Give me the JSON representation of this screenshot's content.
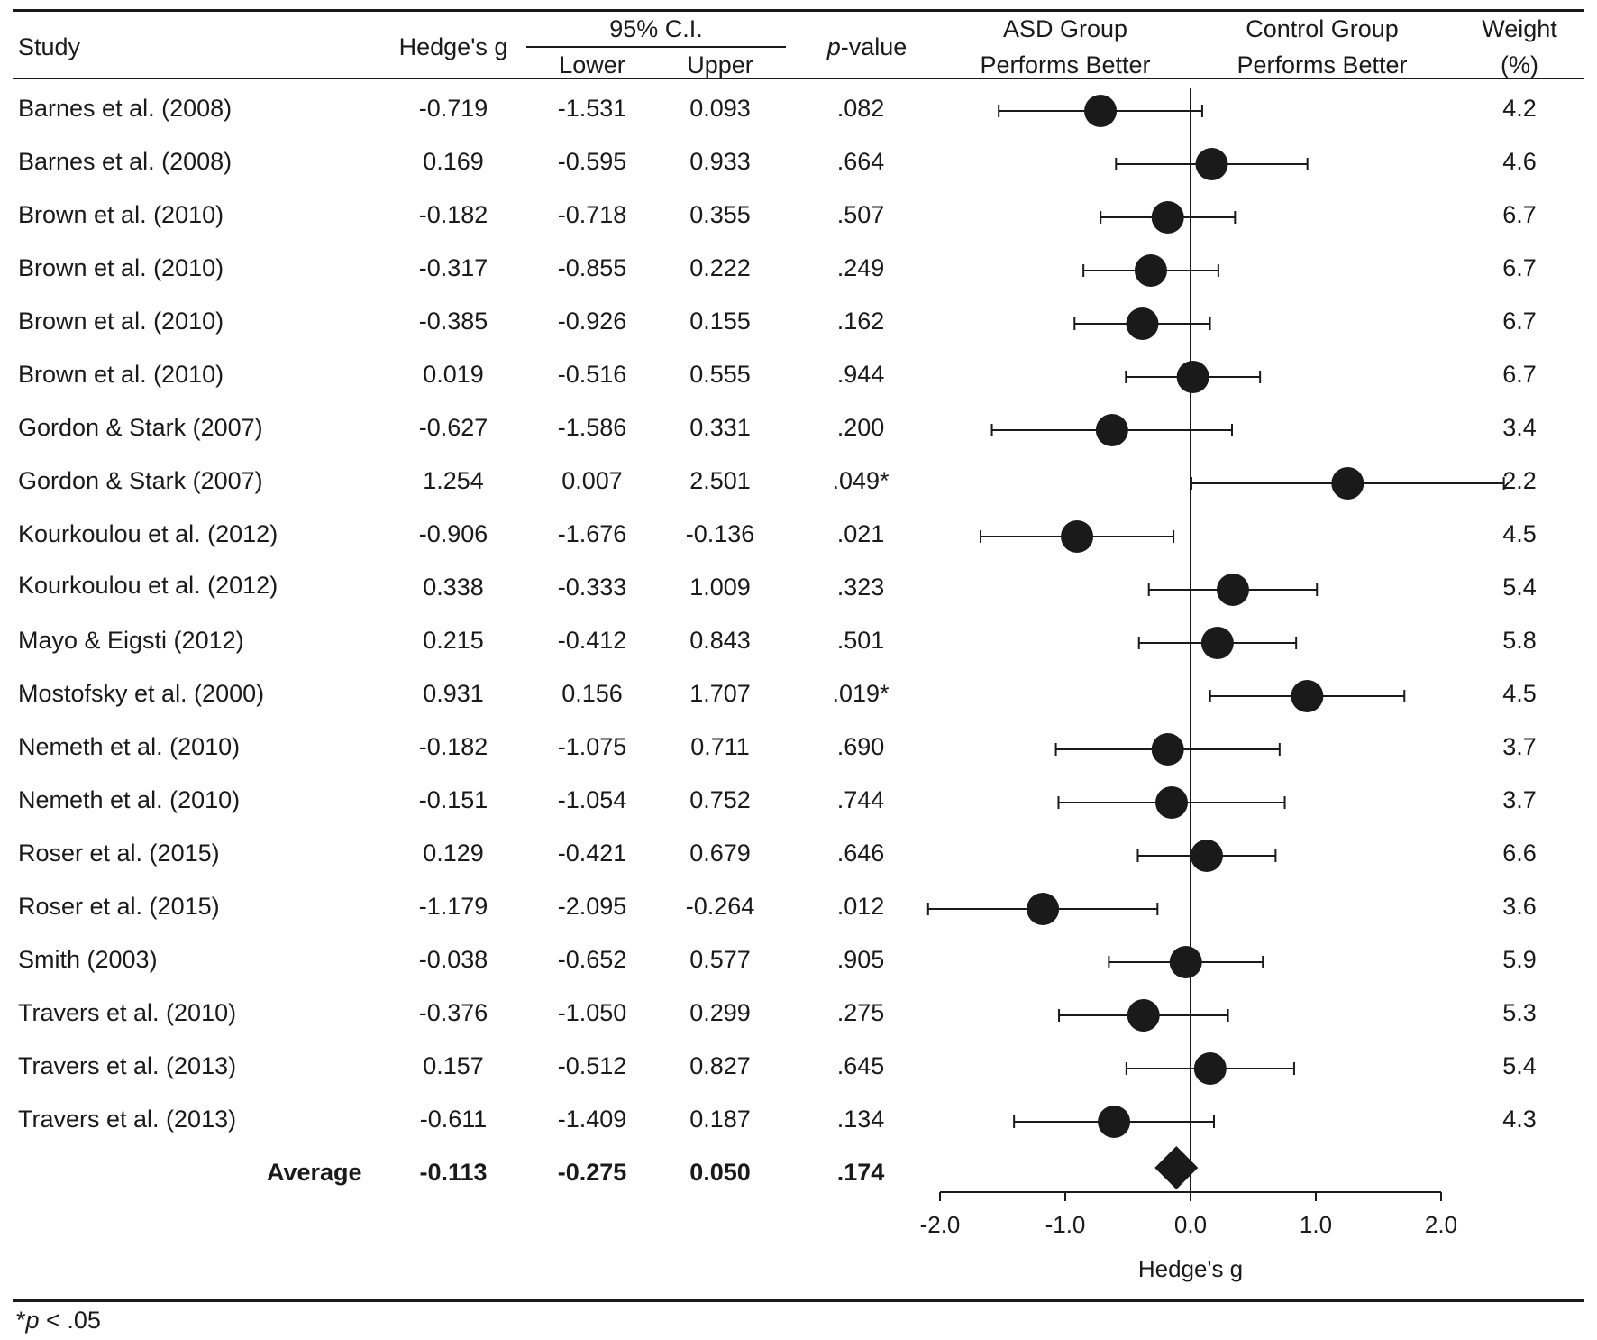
{
  "chart_data": {
    "type": "forest",
    "columns": {
      "study": "Study",
      "hedges_g": "Hedge's g",
      "ci": "95% C.I.",
      "lower": "Lower",
      "upper": "Upper",
      "p_prefix": "p",
      "p_suffix": "-value",
      "asd_line1": "ASD Group",
      "asd_line2": "Performs Better",
      "control_line1": "Control Group",
      "control_line2": "Performs Better",
      "weight_line1": "Weight",
      "weight_line2": "(%)"
    },
    "studies": [
      {
        "study": "Barnes et al. (2008)",
        "g": "-0.719",
        "lower": "-1.531",
        "upper": "0.093",
        "p": ".082",
        "weight": "4.2"
      },
      {
        "study": "Barnes et al. (2008)",
        "g": "0.169",
        "lower": "-0.595",
        "upper": "0.933",
        "p": ".664",
        "weight": "4.6"
      },
      {
        "study": "Brown et al. (2010)",
        "g": "-0.182",
        "lower": "-0.718",
        "upper": "0.355",
        "p": ".507",
        "weight": "6.7"
      },
      {
        "study": "Brown et al. (2010)",
        "g": "-0.317",
        "lower": "-0.855",
        "upper": "0.222",
        "p": ".249",
        "weight": "6.7"
      },
      {
        "study": "Brown et al. (2010)",
        "g": "-0.385",
        "lower": "-0.926",
        "upper": "0.155",
        "p": ".162",
        "weight": "6.7"
      },
      {
        "study": "Brown et al. (2010)",
        "g": "0.019",
        "lower": "-0.516",
        "upper": "0.555",
        "p": ".944",
        "weight": "6.7"
      },
      {
        "study": "Gordon & Stark (2007)",
        "g": "-0.627",
        "lower": "-1.586",
        "upper": "0.331",
        "p": ".200",
        "weight": "3.4"
      },
      {
        "study": "Gordon & Stark (2007)",
        "g": "1.254",
        "lower": "0.007",
        "upper": "2.501",
        "p": ".049*",
        "weight": "2.2"
      },
      {
        "study": "Kourkoulou et al. (2012)",
        "g": "-0.906",
        "lower": "-1.676",
        "upper": "-0.136",
        "p": ".021",
        "weight": "4.5"
      },
      {
        "study": "Kourkoulou et al. (2012)",
        "g": "0.338",
        "lower": "-0.333",
        "upper": "1.009",
        "p": ".323",
        "weight": "5.4"
      },
      {
        "study": "Mayo & Eigsti (2012)",
        "g": "0.215",
        "lower": "-0.412",
        "upper": "0.843",
        "p": ".501",
        "weight": "5.8"
      },
      {
        "study": "Mostofsky et al. (2000)",
        "g": "0.931",
        "lower": "0.156",
        "upper": "1.707",
        "p": ".019*",
        "weight": "4.5"
      },
      {
        "study": "Nemeth et al. (2010)",
        "g": "-0.182",
        "lower": "-1.075",
        "upper": "0.711",
        "p": ".690",
        "weight": "3.7"
      },
      {
        "study": "Nemeth et al. (2010)",
        "g": "-0.151",
        "lower": "-1.054",
        "upper": "0.752",
        "p": ".744",
        "weight": "3.7"
      },
      {
        "study": "Roser et al. (2015)",
        "g": "0.129",
        "lower": "-0.421",
        "upper": "0.679",
        "p": ".646",
        "weight": "6.6"
      },
      {
        "study": "Roser et al. (2015)",
        "g": "-1.179",
        "lower": "-2.095",
        "upper": "-0.264",
        "p": ".012",
        "weight": "3.6"
      },
      {
        "study": "Smith (2003)",
        "g": "-0.038",
        "lower": "-0.652",
        "upper": "0.577",
        "p": ".905",
        "weight": "5.9"
      },
      {
        "study": "Travers et al. (2010)",
        "g": "-0.376",
        "lower": "-1.050",
        "upper": "0.299",
        "p": ".275",
        "weight": "5.3"
      },
      {
        "study": "Travers et al. (2013)",
        "g": "0.157",
        "lower": "-0.512",
        "upper": "0.827",
        "p": ".645",
        "weight": "5.4"
      },
      {
        "study": "Travers et al. (2013)",
        "g": "-0.611",
        "lower": "-1.409",
        "upper": "0.187",
        "p": ".134",
        "weight": "4.3"
      }
    ],
    "average": {
      "label": "Average",
      "g": "-0.113",
      "lower": "-0.275",
      "upper": "0.050",
      "p": ".174"
    },
    "x_axis": {
      "label": "Hedge's g",
      "range": [
        -2.0,
        2.0
      ],
      "ticks": [
        -2.0,
        -1.0,
        0.0,
        1.0,
        2.0
      ],
      "tick_labels": [
        "-2.0",
        "-1.0",
        "0.0",
        "1.0",
        "2.0"
      ],
      "reference_line": 0.0
    },
    "footnote_prefix": "*",
    "footnote_p": "p",
    "footnote_rest": " < .05"
  }
}
